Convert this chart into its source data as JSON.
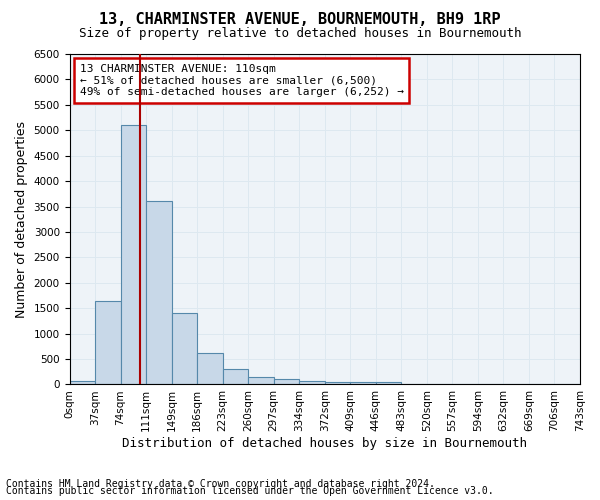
{
  "title": "13, CHARMINSTER AVENUE, BOURNEMOUTH, BH9 1RP",
  "subtitle": "Size of property relative to detached houses in Bournemouth",
  "xlabel": "Distribution of detached houses by size in Bournemouth",
  "ylabel": "Number of detached properties",
  "bar_color": "#c8d8e8",
  "bar_edge_color": "#5588aa",
  "bar_edge_width": 0.8,
  "bin_labels": [
    "0sqm",
    "37sqm",
    "74sqm",
    "111sqm",
    "149sqm",
    "186sqm",
    "223sqm",
    "260sqm",
    "297sqm",
    "334sqm",
    "372sqm",
    "409sqm",
    "446sqm",
    "483sqm",
    "520sqm",
    "557sqm",
    "594sqm",
    "632sqm",
    "669sqm",
    "706sqm",
    "743sqm"
  ],
  "bar_values": [
    75,
    1650,
    5100,
    3600,
    1400,
    625,
    300,
    140,
    100,
    60,
    50,
    50,
    50,
    0,
    0,
    0,
    0,
    0,
    0,
    0
  ],
  "vline_x": 2.75,
  "vline_color": "#aa0000",
  "vline_lw": 1.5,
  "annotation_text": "13 CHARMINSTER AVENUE: 110sqm\n← 51% of detached houses are smaller (6,500)\n49% of semi-detached houses are larger (6,252) →",
  "annotation_box_color": "white",
  "annotation_box_edge_color": "#cc0000",
  "annotation_fontsize": 8.0,
  "ylim": [
    0,
    6500
  ],
  "yticks": [
    0,
    500,
    1000,
    1500,
    2000,
    2500,
    3000,
    3500,
    4000,
    4500,
    5000,
    5500,
    6000,
    6500
  ],
  "grid_color": "#dde8f0",
  "bg_color": "#eef3f8",
  "footer1": "Contains HM Land Registry data © Crown copyright and database right 2024.",
  "footer2": "Contains public sector information licensed under the Open Government Licence v3.0.",
  "title_fontsize": 11,
  "subtitle_fontsize": 9,
  "xlabel_fontsize": 9,
  "ylabel_fontsize": 9,
  "tick_fontsize": 7.5,
  "footer_fontsize": 7
}
